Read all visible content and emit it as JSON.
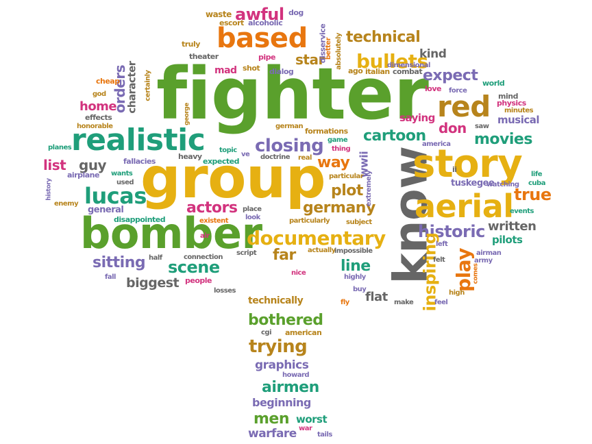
{
  "palette": {
    "green": "#5aa02c",
    "orange": "#e8760f",
    "gold": "#e6b012",
    "teal": "#1f9e7a",
    "purple": "#7a6bb3",
    "magenta": "#d2337e",
    "brown": "#b7841c",
    "gray": "#666666"
  },
  "words": [
    {
      "text": "fighter",
      "color": "green"
    },
    {
      "text": "group",
      "color": "gold"
    },
    {
      "text": "know",
      "color": "gray"
    },
    {
      "text": "bomber",
      "color": "green"
    },
    {
      "text": "story",
      "color": "gold"
    },
    {
      "text": "aerial",
      "color": "gold"
    },
    {
      "text": "realistic",
      "color": "teal"
    },
    {
      "text": "based",
      "color": "orange"
    },
    {
      "text": "red",
      "color": "brown"
    },
    {
      "text": "documentary",
      "color": "gold"
    },
    {
      "text": "lucas",
      "color": "teal"
    },
    {
      "text": "bullets",
      "color": "gold"
    },
    {
      "text": "awful",
      "color": "magenta"
    },
    {
      "text": "closing",
      "color": "purple"
    },
    {
      "text": "cartoon",
      "color": "teal"
    },
    {
      "text": "technical",
      "color": "brown"
    },
    {
      "text": "movies",
      "color": "teal"
    },
    {
      "text": "historic",
      "color": "purple"
    },
    {
      "text": "expect",
      "color": "purple"
    },
    {
      "text": "true",
      "color": "orange"
    },
    {
      "text": "play",
      "color": "orange"
    },
    {
      "text": "inspiring",
      "color": "gold"
    },
    {
      "text": "scene",
      "color": "teal"
    },
    {
      "text": "sitting",
      "color": "purple"
    },
    {
      "text": "actors",
      "color": "magenta"
    },
    {
      "text": "germany",
      "color": "brown"
    },
    {
      "text": "plot",
      "color": "brown"
    },
    {
      "text": "way",
      "color": "orange"
    },
    {
      "text": "far",
      "color": "brown"
    },
    {
      "text": "line",
      "color": "teal"
    },
    {
      "text": "flat",
      "color": "gray"
    },
    {
      "text": "don",
      "color": "magenta"
    },
    {
      "text": "star",
      "color": "brown"
    },
    {
      "text": "kind",
      "color": "gray"
    },
    {
      "text": "guy",
      "color": "gray"
    },
    {
      "text": "list",
      "color": "magenta"
    },
    {
      "text": "home",
      "color": "magenta"
    },
    {
      "text": "orders",
      "color": "purple"
    },
    {
      "text": "character",
      "color": "gray"
    },
    {
      "text": "bothered",
      "color": "green"
    },
    {
      "text": "trying",
      "color": "brown"
    },
    {
      "text": "graphics",
      "color": "purple"
    },
    {
      "text": "airmen",
      "color": "teal"
    },
    {
      "text": "beginning",
      "color": "purple"
    },
    {
      "text": "men",
      "color": "green"
    },
    {
      "text": "warfare",
      "color": "purple"
    },
    {
      "text": "worst",
      "color": "teal"
    },
    {
      "text": "written",
      "color": "gray"
    },
    {
      "text": "musical",
      "color": "purple"
    },
    {
      "text": "saying",
      "color": "magenta"
    },
    {
      "text": "tuskegee",
      "color": "purple"
    },
    {
      "text": "pilots",
      "color": "teal"
    },
    {
      "text": "biggest",
      "color": "gray"
    },
    {
      "text": "technically",
      "color": "brown"
    },
    {
      "text": "wwii",
      "color": "purple"
    },
    {
      "text": "mad",
      "color": "magenta"
    },
    {
      "text": "waste",
      "color": "brown"
    },
    {
      "text": "dog",
      "color": "purple"
    },
    {
      "text": "escort",
      "color": "brown"
    },
    {
      "text": "alcoholic",
      "color": "purple"
    },
    {
      "text": "disservice",
      "color": "purple"
    },
    {
      "text": "better",
      "color": "orange"
    },
    {
      "text": "absolutely",
      "color": "brown"
    },
    {
      "text": "truly",
      "color": "brown"
    },
    {
      "text": "theater",
      "color": "gray"
    },
    {
      "text": "pipe",
      "color": "magenta"
    },
    {
      "text": "dialog",
      "color": "purple"
    },
    {
      "text": "shot",
      "color": "brown"
    },
    {
      "text": "ago",
      "color": "brown"
    },
    {
      "text": "dimensional",
      "color": "purple"
    },
    {
      "text": "italian",
      "color": "brown"
    },
    {
      "text": "combat",
      "color": "gray"
    },
    {
      "text": "cheap",
      "color": "orange"
    },
    {
      "text": "certainly",
      "color": "brown"
    },
    {
      "text": "airplane",
      "color": "purple"
    },
    {
      "text": "god",
      "color": "brown"
    },
    {
      "text": "effects",
      "color": "gray"
    },
    {
      "text": "honorable",
      "color": "brown"
    },
    {
      "text": "world",
      "color": "teal"
    },
    {
      "text": "love",
      "color": "magenta"
    },
    {
      "text": "force",
      "color": "purple"
    },
    {
      "text": "mind",
      "color": "gray"
    },
    {
      "text": "physics",
      "color": "magenta"
    },
    {
      "text": "minutes",
      "color": "brown"
    },
    {
      "text": "george",
      "color": "brown"
    },
    {
      "text": "german",
      "color": "brown"
    },
    {
      "text": "formations",
      "color": "brown"
    },
    {
      "text": "saw",
      "color": "gray"
    },
    {
      "text": "game",
      "color": "teal"
    },
    {
      "text": "thing",
      "color": "magenta"
    },
    {
      "text": "america",
      "color": "purple"
    },
    {
      "text": "topic",
      "color": "teal"
    },
    {
      "text": "ve",
      "color": "purple"
    },
    {
      "text": "doctrine",
      "color": "gray"
    },
    {
      "text": "real",
      "color": "brown"
    },
    {
      "text": "particular",
      "color": "brown"
    },
    {
      "text": "extremely",
      "color": "purple"
    },
    {
      "text": "ii",
      "color": "gray"
    },
    {
      "text": "life",
      "color": "teal"
    },
    {
      "text": "cuba",
      "color": "teal"
    },
    {
      "text": "watching",
      "color": "purple"
    },
    {
      "text": "planes",
      "color": "teal"
    },
    {
      "text": "fallacies",
      "color": "purple"
    },
    {
      "text": "heavy",
      "color": "gray"
    },
    {
      "text": "expected",
      "color": "teal"
    },
    {
      "text": "wants",
      "color": "teal"
    },
    {
      "text": "used",
      "color": "gray"
    },
    {
      "text": "history",
      "color": "purple"
    },
    {
      "text": "enemy",
      "color": "brown"
    },
    {
      "text": "general",
      "color": "purple"
    },
    {
      "text": "disappointed",
      "color": "teal"
    },
    {
      "text": "existent",
      "color": "orange"
    },
    {
      "text": "place",
      "color": "gray"
    },
    {
      "text": "look",
      "color": "purple"
    },
    {
      "text": "particularly",
      "color": "brown"
    },
    {
      "text": "subject",
      "color": "brown"
    },
    {
      "text": "events",
      "color": "teal"
    },
    {
      "text": "left",
      "color": "purple"
    },
    {
      "text": "felt",
      "color": "gray"
    },
    {
      "text": "airman",
      "color": "purple"
    },
    {
      "text": "army",
      "color": "purple"
    },
    {
      "text": "comes",
      "color": "orange"
    },
    {
      "text": "high",
      "color": "brown"
    },
    {
      "text": "feel",
      "color": "purple"
    },
    {
      "text": "make",
      "color": "gray"
    },
    {
      "text": "half",
      "color": "gray"
    },
    {
      "text": "connection",
      "color": "gray"
    },
    {
      "text": "script",
      "color": "gray"
    },
    {
      "text": "actually",
      "color": "brown"
    },
    {
      "text": "impossible",
      "color": "gray"
    },
    {
      "text": "fall",
      "color": "purple"
    },
    {
      "text": "people",
      "color": "magenta"
    },
    {
      "text": "air",
      "color": "magenta"
    },
    {
      "text": "nice",
      "color": "magenta"
    },
    {
      "text": "highly",
      "color": "purple"
    },
    {
      "text": "buy",
      "color": "purple"
    },
    {
      "text": "fly",
      "color": "orange"
    },
    {
      "text": "losses",
      "color": "gray"
    },
    {
      "text": "cgi",
      "color": "gray"
    },
    {
      "text": "american",
      "color": "brown"
    },
    {
      "text": "howard",
      "color": "purple"
    },
    {
      "text": "war",
      "color": "magenta"
    },
    {
      "text": "tails",
      "color": "purple"
    }
  ]
}
